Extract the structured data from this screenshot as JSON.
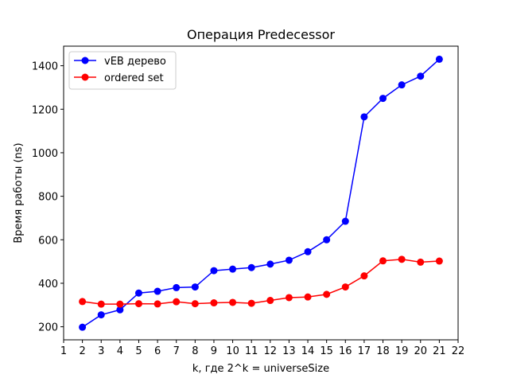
{
  "chart_data": {
    "type": "line",
    "title": "Операция Predecessor",
    "xlabel": "k, где 2^k = universeSize",
    "ylabel": "Время работы (ns)",
    "x": [
      2,
      3,
      4,
      5,
      6,
      7,
      8,
      9,
      10,
      11,
      12,
      13,
      14,
      15,
      16,
      17,
      18,
      19,
      20,
      21
    ],
    "xlim": [
      1,
      22
    ],
    "ylim": [
      140,
      1490
    ],
    "xticks": [
      "1",
      "2",
      "3",
      "4",
      "5",
      "6",
      "7",
      "8",
      "9",
      "10",
      "11",
      "12",
      "13",
      "14",
      "15",
      "16",
      "17",
      "18",
      "19",
      "20",
      "21",
      "22"
    ],
    "yticks": [
      "200",
      "400",
      "600",
      "800",
      "1000",
      "1200",
      "1400"
    ],
    "legend_position": "top-left",
    "grid": false,
    "series": [
      {
        "name": "vEB дерево",
        "color": "#0000ff",
        "values": [
          198,
          255,
          278,
          355,
          363,
          380,
          383,
          458,
          465,
          472,
          488,
          506,
          545,
          600,
          685,
          1165,
          1250,
          1312,
          1352,
          1430
        ]
      },
      {
        "name": "ordered set",
        "color": "#ff0000",
        "values": [
          316,
          304,
          304,
          306,
          305,
          315,
          306,
          310,
          312,
          308,
          321,
          334,
          337,
          349,
          383,
          434,
          503,
          510,
          497,
          502
        ]
      }
    ]
  }
}
